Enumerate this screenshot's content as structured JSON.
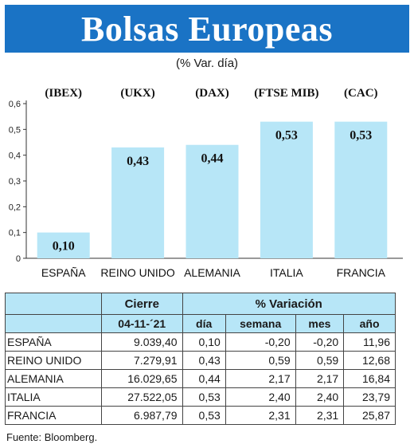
{
  "header": {
    "title": "Bolsas Europeas",
    "subtitle": "(% Var. día)"
  },
  "chart_data": {
    "type": "bar",
    "categories": [
      "ESPAÑA",
      "REINO UNIDO",
      "ALEMANIA",
      "ITALIA",
      "FRANCIA"
    ],
    "index_codes": [
      "(IBEX)",
      "(UKX)",
      "(DAX)",
      "(FTSE MIB)",
      "(CAC)"
    ],
    "values": [
      0.1,
      0.43,
      0.44,
      0.53,
      0.53
    ],
    "value_labels": [
      "0,10",
      "0,43",
      "0,44",
      "0,53",
      "0,53"
    ],
    "ylim": [
      0,
      0.6
    ],
    "yticks": [
      0,
      0.1,
      0.2,
      0.3,
      0.4,
      0.5,
      0.6
    ],
    "ytick_labels": [
      "0",
      "0,1",
      "0,2",
      "0,3",
      "0,4",
      "0,5",
      "0,6"
    ],
    "bar_color": "#b7e6f7",
    "grid": false
  },
  "table": {
    "group_headers": [
      "Cierre",
      "% Variación"
    ],
    "columns": [
      "04-11-´21",
      "día",
      "semana",
      "mes",
      "año"
    ],
    "rows": [
      {
        "name": "ESPAÑA",
        "values": [
          "9.039,40",
          "0,10",
          "-0,20",
          "-0,20",
          "11,96"
        ]
      },
      {
        "name": "REINO UNIDO",
        "values": [
          "7.279,91",
          "0,43",
          "0,59",
          "0,59",
          "12,68"
        ]
      },
      {
        "name": "ALEMANIA",
        "values": [
          "16.029,65",
          "0,44",
          "2,17",
          "2,17",
          "16,84"
        ]
      },
      {
        "name": "ITALIA",
        "values": [
          "27.522,05",
          "0,53",
          "2,40",
          "2,40",
          "23,79"
        ]
      },
      {
        "name": "FRANCIA",
        "values": [
          "6.987,79",
          "0,53",
          "2,31",
          "2,31",
          "25,87"
        ]
      }
    ]
  },
  "footer": {
    "source": "Fuente: Bloomberg."
  },
  "colors": {
    "title_bg": "#1a73c5",
    "accent_light": "#b7e6f7"
  }
}
